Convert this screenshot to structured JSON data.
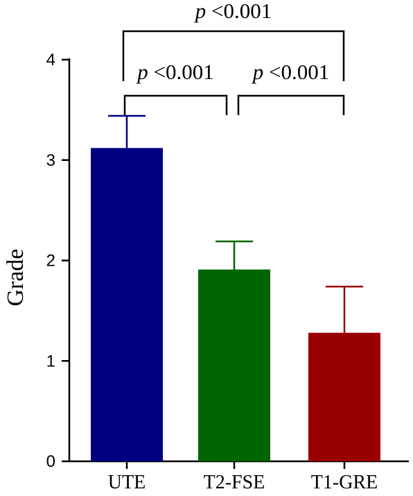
{
  "chart_data": {
    "type": "bar",
    "categories": [
      "UTE",
      "T2-FSE",
      "T1-GRE"
    ],
    "values": [
      3.12,
      1.91,
      1.28
    ],
    "error_upper": [
      3.44,
      2.19,
      1.74
    ],
    "colors": [
      "#000080",
      "#006400",
      "#990000"
    ],
    "ylabel": "Grade",
    "ylim": [
      0,
      4
    ],
    "yticks": [
      "0",
      "1",
      "2",
      "3",
      "4"
    ],
    "grid": false,
    "comparisons": [
      {
        "from": "UTE",
        "to": "T2-FSE",
        "p_symbol": "p",
        "p_text": " <0.001"
      },
      {
        "from": "T2-FSE",
        "to": "T1-GRE",
        "p_symbol": "p",
        "p_text": " <0.001"
      },
      {
        "from": "UTE",
        "to": "T1-GRE",
        "p_symbol": "p",
        "p_text": " <0.001"
      }
    ]
  }
}
